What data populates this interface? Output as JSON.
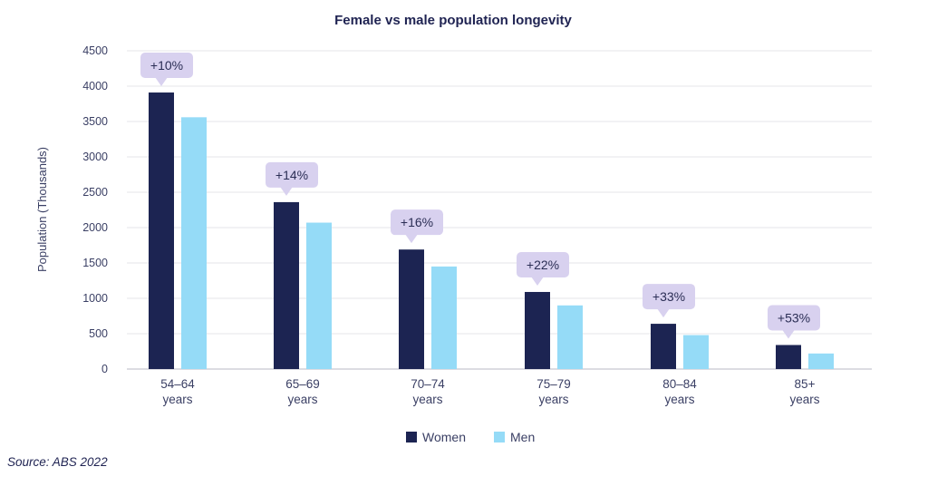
{
  "chart_data": {
    "type": "bar",
    "title": "Female vs male population longevity",
    "ylabel": "Population (Thousands)",
    "ylim": [
      0,
      4500
    ],
    "yticks": [
      0,
      500,
      1000,
      1500,
      2000,
      2500,
      3000,
      3500,
      4000,
      4500
    ],
    "categories": [
      [
        "54–64",
        "years"
      ],
      [
        "65–69",
        "years"
      ],
      [
        "70–74",
        "years"
      ],
      [
        "75–79",
        "years"
      ],
      [
        "80–84",
        "years"
      ],
      [
        "85+",
        "years"
      ]
    ],
    "series": [
      {
        "name": "Women",
        "color": "#1c2452",
        "values": [
          3910,
          2360,
          1690,
          1090,
          640,
          340
        ]
      },
      {
        "name": "Men",
        "color": "#95dbf7",
        "values": [
          3560,
          2070,
          1450,
          900,
          480,
          220
        ]
      }
    ],
    "annotations": [
      "+10%",
      "+14%",
      "+16%",
      "+22%",
      "+33%",
      "+53%"
    ],
    "annotation_color": "#d8d1ef",
    "grid": true,
    "legend": "bottom-center"
  },
  "source": "Source: ABS 2022"
}
